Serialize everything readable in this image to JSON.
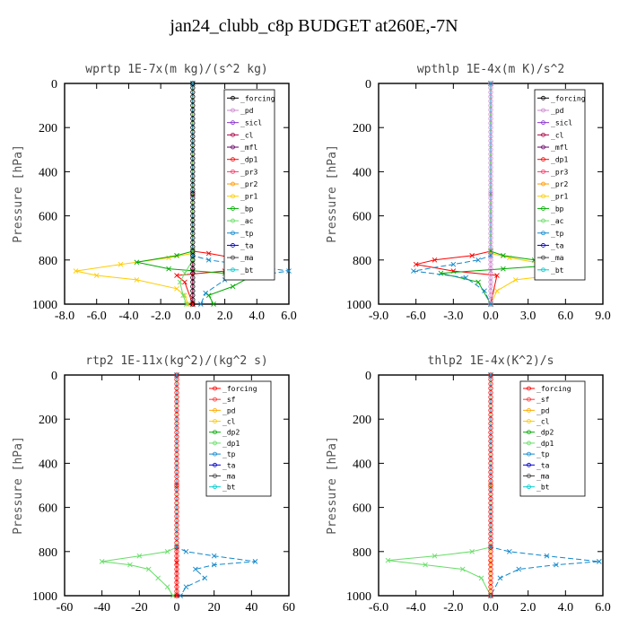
{
  "page": {
    "title": "jan24_clubb_c8p  BUDGET at260E,-7N"
  },
  "chart_data": [
    {
      "type": "line",
      "title": "wprtp  1E-7x(m kg)/(s^2 kg)",
      "ylabel": "Pressure [hPa]",
      "xlim": [
        -8.0,
        6.0
      ],
      "xticks": [
        -8.0,
        -6.0,
        -4.0,
        -2.0,
        0.0,
        2.0,
        4.0,
        6.0
      ],
      "xtick_labels": [
        "-8.0",
        "-6.0",
        "-4.0",
        "-2.0",
        "0.0",
        "2.0",
        "4.0",
        "6.0"
      ],
      "ylim": [
        1000,
        0
      ],
      "yticks": [
        0,
        200,
        400,
        600,
        800,
        1000
      ],
      "ytick_labels": [
        "0",
        "200",
        "400",
        "600",
        "800",
        "1000"
      ],
      "legend": [
        "_forcing",
        "_pd",
        "_sicl",
        "_cl",
        "_mfl",
        "_dp1",
        "_pr3",
        "_pr2",
        "_pr1",
        "_bp",
        "_ac",
        "_tp",
        "_ta",
        "_ma",
        "_bt"
      ],
      "series": [
        {
          "name": "_forcing",
          "color": "#000000",
          "dash": "",
          "x": [
            0,
            0,
            0,
            0
          ],
          "y": [
            0,
            500,
            850,
            1000
          ]
        },
        {
          "name": "_pd",
          "color": "#cc88cc",
          "dash": "",
          "x": [
            0,
            0,
            0,
            0
          ],
          "y": [
            0,
            500,
            850,
            1000
          ]
        },
        {
          "name": "_cl",
          "color": "#aa0044",
          "dash": "",
          "x": [
            0,
            0,
            0,
            0
          ],
          "y": [
            0,
            500,
            850,
            1000
          ]
        },
        {
          "name": "_dp1",
          "color": "#ff0000",
          "dash": "",
          "x": [
            0,
            0,
            1.0,
            2.5,
            3.5,
            2.0,
            -1.0,
            -0.5,
            0
          ],
          "y": [
            0,
            760,
            770,
            790,
            820,
            850,
            870,
            900,
            1000
          ]
        },
        {
          "name": "_pr1",
          "color": "#ffcc00",
          "dash": "",
          "x": [
            0,
            0,
            -1.5,
            -4.5,
            -7.3,
            -6.0,
            -3.5,
            -1.0,
            -0.5,
            -0.3
          ],
          "y": [
            0,
            770,
            790,
            820,
            850,
            870,
            890,
            930,
            960,
            1000
          ]
        },
        {
          "name": "_bp",
          "color": "#00aa00",
          "dash": "",
          "x": [
            0,
            0,
            -1.0,
            -3.5,
            -1.5,
            2.0,
            3.5,
            2.5,
            1.0,
            1.3
          ],
          "y": [
            0,
            760,
            780,
            810,
            840,
            860,
            880,
            920,
            960,
            1000
          ]
        },
        {
          "name": "_ac",
          "color": "#66dd66",
          "dash": "",
          "x": [
            0,
            0,
            -0.5,
            -0.8,
            -0.6,
            -0.4
          ],
          "y": [
            0,
            800,
            860,
            900,
            960,
            1000
          ]
        },
        {
          "name": "_tp",
          "color": "#1188cc",
          "dash": "6,3",
          "x": [
            0,
            0,
            1.0,
            3.0,
            6.0,
            2.0,
            0.8,
            0.5
          ],
          "y": [
            0,
            780,
            800,
            820,
            850,
            890,
            950,
            1000
          ]
        }
      ]
    },
    {
      "type": "line",
      "title": "wpthlp  1E-4x(m K)/s^2",
      "ylabel": "Pressure [hPa]",
      "xlim": [
        -9.0,
        9.0
      ],
      "xticks": [
        -9.0,
        -6.0,
        -3.0,
        0.0,
        3.0,
        6.0,
        9.0
      ],
      "xtick_labels": [
        "-9.0",
        "-6.0",
        "-3.0",
        "0.0",
        "3.0",
        "6.0",
        "9.0"
      ],
      "ylim": [
        1000,
        0
      ],
      "yticks": [
        0,
        200,
        400,
        600,
        800,
        1000
      ],
      "ytick_labels": [
        "0",
        "200",
        "400",
        "600",
        "800",
        "1000"
      ],
      "legend": [
        "_forcing",
        "_pd",
        "_sicl",
        "_cl",
        "_mfl",
        "_dp1",
        "_pr3",
        "_pr2",
        "_pr1",
        "_bp",
        "_ac",
        "_tp",
        "_ta",
        "_ma",
        "_bt"
      ],
      "series": [
        {
          "name": "_forcing",
          "color": "#cc88cc",
          "dash": "",
          "x": [
            0,
            0,
            0,
            0
          ],
          "y": [
            0,
            500,
            850,
            1000
          ]
        },
        {
          "name": "_dp1",
          "color": "#ff0000",
          "dash": "",
          "x": [
            0,
            0,
            -1.5,
            -4.5,
            -6.0,
            -3.0,
            0.5,
            0
          ],
          "y": [
            0,
            760,
            780,
            800,
            820,
            850,
            870,
            1000
          ]
        },
        {
          "name": "_pr1",
          "color": "#ffcc00",
          "dash": "",
          "x": [
            0,
            0,
            1.5,
            4.5,
            7.0,
            5.0,
            2.0,
            0.5,
            0
          ],
          "y": [
            0,
            770,
            790,
            820,
            850,
            870,
            890,
            940,
            1000
          ]
        },
        {
          "name": "_bp",
          "color": "#00aa00",
          "dash": "",
          "x": [
            0,
            0,
            1.0,
            3.5,
            6.0,
            1.0,
            -4.0,
            -1.0,
            0
          ],
          "y": [
            0,
            760,
            780,
            800,
            820,
            840,
            860,
            900,
            1000
          ]
        },
        {
          "name": "_tp",
          "color": "#1188cc",
          "dash": "6,3",
          "x": [
            0,
            0,
            -1.0,
            -3.0,
            -6.2,
            -2.0,
            -0.5,
            0
          ],
          "y": [
            0,
            780,
            800,
            820,
            850,
            880,
            940,
            1000
          ]
        }
      ]
    },
    {
      "type": "line",
      "title": "rtp2  1E-11x(kg^2)/(kg^2 s)",
      "ylabel": "Pressure [hPa]",
      "xlim": [
        -60,
        60
      ],
      "xticks": [
        -60,
        -40,
        -20,
        0,
        20,
        40,
        60
      ],
      "xtick_labels": [
        "-60",
        "-40",
        "-20",
        "0",
        "20",
        "40",
        "60"
      ],
      "ylim": [
        1000,
        0
      ],
      "yticks": [
        0,
        200,
        400,
        600,
        800,
        1000
      ],
      "ytick_labels": [
        "0",
        "200",
        "400",
        "600",
        "800",
        "1000"
      ],
      "legend": [
        "_forcing",
        "_sf",
        "_pd",
        "_cl",
        "_dp2",
        "_dp1",
        "_tp",
        "_ta",
        "_ma",
        "_bt"
      ],
      "series": [
        {
          "name": "_forcing",
          "color": "#ff0000",
          "dash": "",
          "x": [
            0,
            0,
            0,
            0
          ],
          "y": [
            0,
            500,
            850,
            1000
          ]
        },
        {
          "name": "_dp1",
          "color": "#66dd66",
          "dash": "",
          "x": [
            0,
            0,
            -5,
            -20,
            -40,
            -25,
            -15,
            -10,
            -5,
            -2
          ],
          "y": [
            0,
            780,
            800,
            820,
            845,
            860,
            880,
            920,
            960,
            1000
          ]
        },
        {
          "name": "_tp",
          "color": "#1188cc",
          "dash": "6,3",
          "x": [
            0,
            0,
            5,
            20,
            42,
            20,
            10,
            15,
            5,
            2
          ],
          "y": [
            0,
            780,
            800,
            820,
            845,
            860,
            880,
            920,
            960,
            1000
          ]
        }
      ]
    },
    {
      "type": "line",
      "title": "thlp2  1E-4x(K^2)/s",
      "ylabel": "Pressure [hPa]",
      "xlim": [
        -6.0,
        6.0
      ],
      "xticks": [
        -6.0,
        -4.0,
        -2.0,
        0.0,
        2.0,
        4.0,
        6.0
      ],
      "xtick_labels": [
        "-6.0",
        "-4.0",
        "-2.0",
        "0.0",
        "2.0",
        "4.0",
        "6.0"
      ],
      "ylim": [
        1000,
        0
      ],
      "yticks": [
        0,
        200,
        400,
        600,
        800,
        1000
      ],
      "ytick_labels": [
        "0",
        "200",
        "400",
        "600",
        "800",
        "1000"
      ],
      "legend": [
        "_forcing",
        "_sf",
        "_pd",
        "_cl",
        "_dp2",
        "_dp1",
        "_tp",
        "_ta",
        "_ma",
        "_bt"
      ],
      "series": [
        {
          "name": "_forcing",
          "color": "#ff0000",
          "dash": "",
          "x": [
            0,
            0,
            0,
            0
          ],
          "y": [
            0,
            500,
            850,
            1000
          ]
        },
        {
          "name": "_pd",
          "color": "#ffaa00",
          "dash": "",
          "x": [
            0,
            0,
            0,
            0
          ],
          "y": [
            0,
            500,
            850,
            1000
          ]
        },
        {
          "name": "_dp1",
          "color": "#66dd66",
          "dash": "",
          "x": [
            0,
            0,
            -1.0,
            -3.0,
            -5.5,
            -3.5,
            -1.5,
            -0.5,
            0
          ],
          "y": [
            0,
            780,
            800,
            820,
            840,
            860,
            880,
            920,
            1000
          ]
        },
        {
          "name": "_tp",
          "color": "#1188cc",
          "dash": "6,3",
          "x": [
            0,
            0,
            1.0,
            3.0,
            5.8,
            3.5,
            1.5,
            0.5,
            0
          ],
          "y": [
            0,
            780,
            800,
            820,
            845,
            860,
            880,
            920,
            1000
          ]
        }
      ]
    }
  ]
}
